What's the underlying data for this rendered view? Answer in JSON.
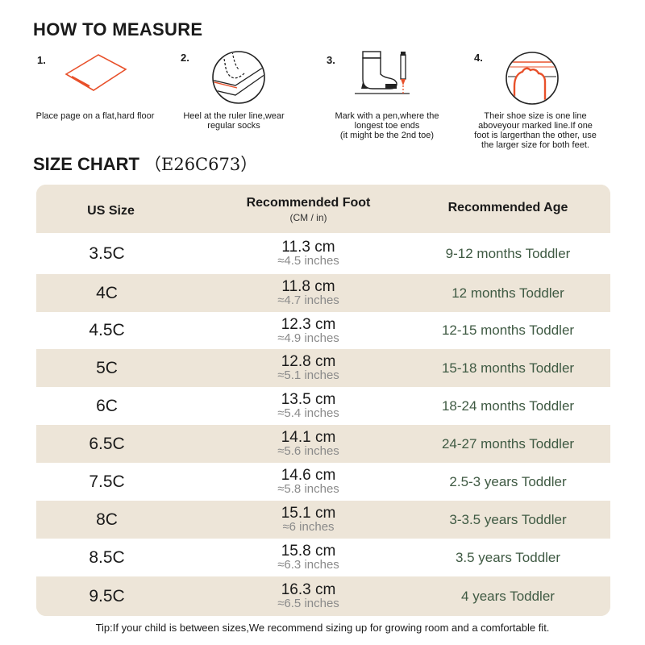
{
  "measure": {
    "title": "HOW TO MEASURE",
    "steps": [
      {
        "num": "1.",
        "icon": "flat-page-icon",
        "text": "Place page on a flat,hard floor"
      },
      {
        "num": "2.",
        "icon": "heel-ruler-icon",
        "text": "Heel at the ruler line,wear regular socks"
      },
      {
        "num": "3.",
        "icon": "sock-pen-icon",
        "text": "Mark with a pen,where the longest toe ends\n(it might be the 2nd toe)"
      },
      {
        "num": "4.",
        "icon": "toe-line-icon",
        "text": "Their shoe size is one line aboveyour marked line.If one foot is largerthan the other, use the larger size for both feet."
      }
    ]
  },
  "chart": {
    "title": "SIZE CHART",
    "code": "（E26C673）",
    "headers": {
      "size": "US Size",
      "foot": "Recommended Foot",
      "foot_sub": "(CM / in)",
      "age": "Recommended Age"
    },
    "rows": [
      {
        "size": "3.5C",
        "cm": "11.3 cm",
        "in": "≈4.5 inches",
        "age": "9-12 months Toddler"
      },
      {
        "size": "4C",
        "cm": "11.8 cm",
        "in": "≈4.7 inches",
        "age": "12 months Toddler"
      },
      {
        "size": "4.5C",
        "cm": "12.3 cm",
        "in": "≈4.9 inches",
        "age": "12-15 months Toddler"
      },
      {
        "size": "5C",
        "cm": "12.8 cm",
        "in": "≈5.1 inches",
        "age": "15-18 months Toddler"
      },
      {
        "size": "6C",
        "cm": "13.5 cm",
        "in": "≈5.4 inches",
        "age": "18-24 months Toddler"
      },
      {
        "size": "6.5C",
        "cm": "14.1 cm",
        "in": "≈5.6 inches",
        "age": "24-27 months Toddler"
      },
      {
        "size": "7.5C",
        "cm": "14.6 cm",
        "in": "≈5.8 inches",
        "age": "2.5-3 years Toddler"
      },
      {
        "size": "8C",
        "cm": "15.1 cm",
        "in": "≈6 inches",
        "age": "3-3.5 years Toddler"
      },
      {
        "size": "8.5C",
        "cm": "15.8 cm",
        "in": "≈6.3 inches",
        "age": "3.5 years Toddler"
      },
      {
        "size": "9.5C",
        "cm": "16.3 cm",
        "in": "≈6.5 inches",
        "age": "4 years Toddler"
      }
    ]
  },
  "tip": "Tip:If your child is between sizes,We recommend sizing up for growing room and a comfortable fit.",
  "colors": {
    "accent": "#e8502a",
    "band": "#ede5d8",
    "age_text": "#3f5a43"
  }
}
